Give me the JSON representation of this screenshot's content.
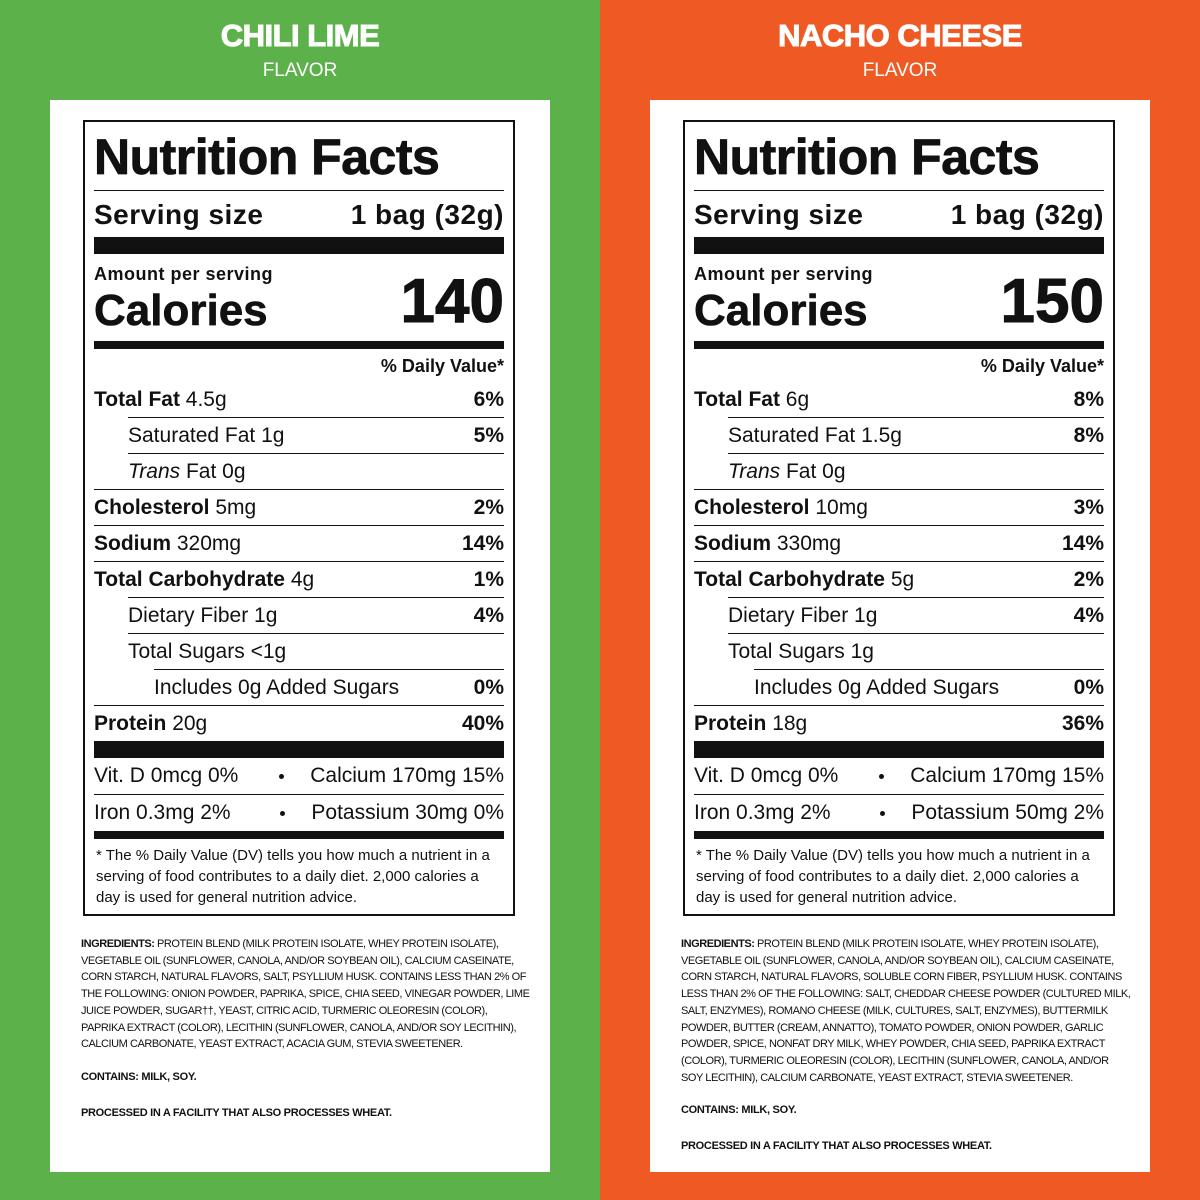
{
  "panels": [
    {
      "flavor": "CHILI LIME",
      "flavor_sub": "FLAVOR",
      "label": {
        "title": "Nutrition Facts",
        "serving_label": "Serving size",
        "serving_size": "1 bag (32g)",
        "amount_per_serving": "Amount per serving",
        "calories_label": "Calories",
        "calories": 140,
        "dv_header": "% Daily Value*",
        "rows": [
          {
            "name": "Total Fat",
            "amount": "4.5g",
            "dv": "6%",
            "sub": [
              {
                "name": "Saturated Fat",
                "amount": "1g",
                "dv": "5%"
              },
              {
                "name_italic": "Trans",
                "name": "Fat",
                "amount": "0g"
              }
            ]
          },
          {
            "name": "Cholesterol",
            "amount": "5mg",
            "dv": "2%"
          },
          {
            "name": "Sodium",
            "amount": "320mg",
            "dv": "14%"
          },
          {
            "name": "Total Carbohydrate",
            "amount": "4g",
            "dv": "1%",
            "sub": [
              {
                "name": "Dietary Fiber",
                "amount": "1g",
                "dv": "4%"
              },
              {
                "name": "Total Sugars",
                "amount": "<1g",
                "sub": [
                  {
                    "name": "Includes 0g Added Sugars",
                    "dv": "0%"
                  }
                ]
              }
            ]
          },
          {
            "name": "Protein",
            "amount": "20g",
            "dv": "40%"
          }
        ],
        "vitamins": [
          [
            "Vit. D 0mcg 0%",
            "Calcium 170mg 15%"
          ],
          [
            "Iron 0.3mg 2%",
            "Potassium 30mg 0%"
          ]
        ],
        "footnote": "* The % Daily Value (DV) tells you how much a nutrient in a serving of food contributes to a daily diet. 2,000 calories a day is used for general nutrition advice."
      },
      "ingredients_label": "INGREDIENTS:",
      "ingredients": "PROTEIN BLEND (MILK PROTEIN ISOLATE, WHEY PROTEIN ISOLATE), VEGETABLE OIL (SUNFLOWER, CANOLA, AND/OR SOYBEAN OIL), CALCIUM CASEINATE, CORN STARCH, NATURAL FLAVORS, SALT, PSYLLIUM HUSK. CONTAINS LESS THAN 2% OF THE FOLLOWING: ONION POWDER, PAPRIKA, SPICE, CHIA SEED, VINEGAR POWDER, LIME JUICE POWDER, SUGAR††, YEAST, CITRIC ACID, TURMERIC OLEORESIN (COLOR), PAPRIKA EXTRACT (COLOR), LECITHIN (SUNFLOWER, CANOLA, AND/OR SOY LECITHIN), CALCIUM CARBONATE, YEAST EXTRACT, ACACIA GUM, STEVIA SWEETENER.",
      "contains": "CONTAINS: MILK, SOY.",
      "facility": "PROCESSED IN A FACILITY THAT ALSO PROCESSES WHEAT."
    },
    {
      "flavor": "NACHO CHEESE",
      "flavor_sub": "FLAVOR",
      "label": {
        "title": "Nutrition Facts",
        "serving_label": "Serving size",
        "serving_size": "1 bag (32g)",
        "amount_per_serving": "Amount per serving",
        "calories_label": "Calories",
        "calories": 150,
        "dv_header": "% Daily Value*",
        "rows": [
          {
            "name": "Total Fat",
            "amount": "6g",
            "dv": "8%",
            "sub": [
              {
                "name": "Saturated Fat",
                "amount": "1.5g",
                "dv": "8%"
              },
              {
                "name_italic": "Trans",
                "name": "Fat",
                "amount": "0g"
              }
            ]
          },
          {
            "name": "Cholesterol",
            "amount": "10mg",
            "dv": "3%"
          },
          {
            "name": "Sodium",
            "amount": "330mg",
            "dv": "14%"
          },
          {
            "name": "Total Carbohydrate",
            "amount": "5g",
            "dv": "2%",
            "sub": [
              {
                "name": "Dietary Fiber",
                "amount": "1g",
                "dv": "4%"
              },
              {
                "name": "Total Sugars",
                "amount": "1g",
                "sub": [
                  {
                    "name": "Includes 0g Added Sugars",
                    "dv": "0%"
                  }
                ]
              }
            ]
          },
          {
            "name": "Protein",
            "amount": "18g",
            "dv": "36%"
          }
        ],
        "vitamins": [
          [
            "Vit. D 0mcg 0%",
            "Calcium 170mg 15%"
          ],
          [
            "Iron 0.3mg 2%",
            "Potassium 50mg 2%"
          ]
        ],
        "footnote": "* The % Daily Value (DV) tells you how much a nutrient in a serving of food contributes to a daily diet. 2,000 calories a day is used for general nutrition advice."
      },
      "ingredients_label": "INGREDIENTS:",
      "ingredients": "PROTEIN BLEND (MILK PROTEIN ISOLATE, WHEY PROTEIN ISOLATE), VEGETABLE OIL (SUNFLOWER, CANOLA, AND/OR SOYBEAN OIL), CALCIUM CASEINATE, CORN STARCH, NATURAL FLAVORS, SOLUBLE CORN FIBER, PSYLLIUM HUSK. CONTAINS LESS THAN 2% OF THE FOLLOWING: SALT, CHEDDAR CHEESE POWDER (CULTURED MILK, SALT, ENZYMES), ROMANO CHEESE (MILK, CULTURES, SALT, ENZYMES), BUTTERMILK POWDER, BUTTER (CREAM, ANNATTO), TOMATO POWDER, ONION POWDER, GARLIC POWDER, SPICE, NONFAT DRY MILK, WHEY POWDER, CHIA SEED, PAPRIKA EXTRACT (COLOR), TURMERIC OLEORESIN (COLOR), LECITHIN (SUNFLOWER, CANOLA, AND/OR SOY LECITHIN), CALCIUM CARBONATE, YEAST EXTRACT, STEVIA SWEETENER.",
      "contains": "CONTAINS: MILK, SOY.",
      "facility": "PROCESSED IN A FACILITY THAT ALSO PROCESSES WHEAT."
    }
  ]
}
